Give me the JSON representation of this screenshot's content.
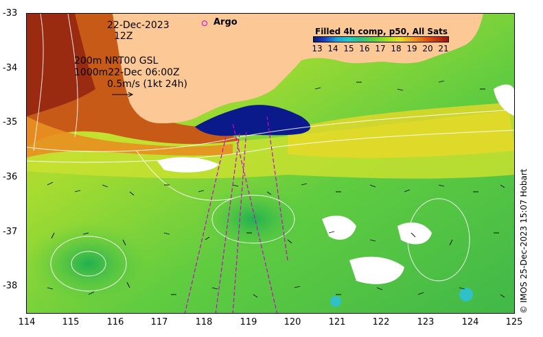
{
  "map": {
    "date": "22-Dec-2023",
    "time": "12Z",
    "contours_line1": "200m  NRT00 GSL",
    "contours_line2": "1000m22-Dec 06:00Z",
    "vector_scale": "0.5m/s (1kt 24h)",
    "argo_label": "Argo",
    "colorbar_title": "Filled 4h comp, p50, All Sats",
    "colorbar_ticks": [
      "13",
      "14",
      "15",
      "16",
      "17",
      "18",
      "19",
      "20",
      "21"
    ],
    "credit": "© IMOS 25-Dec-2023 15:07 Hobart",
    "y_ticks": [
      "-33",
      "-34",
      "-35",
      "-36",
      "-37",
      "-38"
    ],
    "x_ticks": [
      "114",
      "115",
      "116",
      "117",
      "118",
      "119",
      "120",
      "121",
      "122",
      "123",
      "124",
      "125"
    ]
  },
  "colors": {
    "land": "#fcc896",
    "warm_current": "#c84a10",
    "cold_upwelling": "#0a1a8a",
    "ocean_mid": "#70d040",
    "argo": "#d000d0"
  }
}
